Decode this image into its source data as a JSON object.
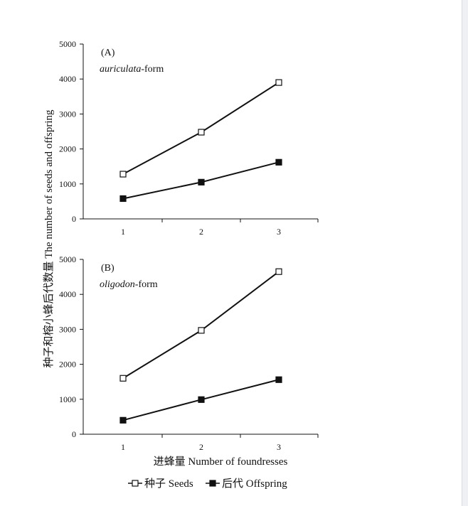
{
  "chart_data": [
    {
      "type": "line",
      "panel_label": "(A)",
      "form_italic": "auriculata",
      "form_suffix": "-form",
      "categories": [
        "1",
        "2",
        "3"
      ],
      "ylim": [
        0,
        5000
      ],
      "yticks": [
        0,
        1000,
        2000,
        3000,
        4000,
        5000
      ],
      "series": [
        {
          "name": "种子 Seeds",
          "marker": "open-square",
          "values": [
            1280,
            2480,
            3900
          ]
        },
        {
          "name": "后代 Offspring",
          "marker": "filled-square",
          "values": [
            580,
            1050,
            1620
          ]
        }
      ]
    },
    {
      "type": "line",
      "panel_label": "(B)",
      "form_italic": "oligodon",
      "form_suffix": "-form",
      "categories": [
        "1",
        "2",
        "3"
      ],
      "ylim": [
        0,
        5000
      ],
      "yticks": [
        0,
        1000,
        2000,
        3000,
        4000,
        5000
      ],
      "series": [
        {
          "name": "种子 Seeds",
          "marker": "open-square",
          "values": [
            1600,
            2970,
            4650
          ]
        },
        {
          "name": "后代 Offspring",
          "marker": "filled-square",
          "values": [
            400,
            990,
            1560
          ]
        }
      ]
    }
  ],
  "ylabel": "种子和榕小蜂后代数量 The number of seeds and offspring",
  "xlabel": "进蜂量 Number of foundresses",
  "legend": [
    {
      "label": "种子 Seeds",
      "marker": "open-square"
    },
    {
      "label": "后代 Offspring",
      "marker": "filled-square"
    }
  ],
  "colors": {
    "ink": "#111111",
    "background": "#ffffff"
  }
}
